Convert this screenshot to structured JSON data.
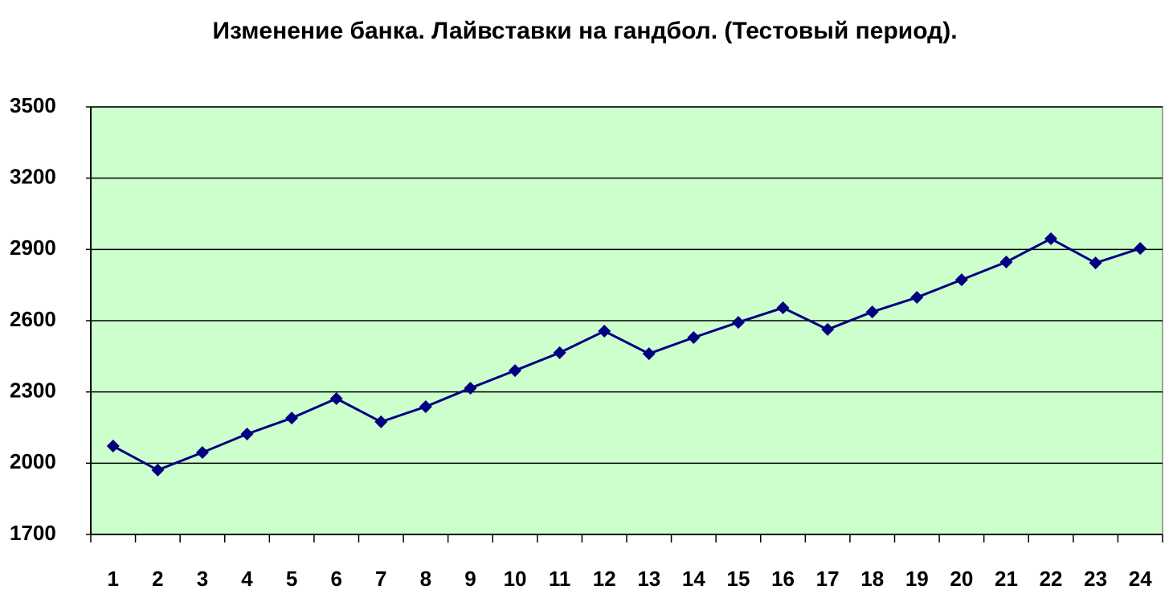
{
  "chart_data": {
    "type": "line",
    "title": "Изменение банка. Лайвставки на гандбол. (Тестовый период).",
    "categories": [
      "1",
      "2",
      "3",
      "4",
      "5",
      "6",
      "7",
      "8",
      "9",
      "10",
      "11",
      "12",
      "13",
      "14",
      "15",
      "16",
      "17",
      "18",
      "19",
      "20",
      "21",
      "22",
      "23",
      "24"
    ],
    "series": [
      {
        "color": "#000080",
        "values": [
          2072,
          1971,
          2045,
          2123,
          2190,
          2272,
          2174,
          2238,
          2316,
          2390,
          2465,
          2556,
          2461,
          2529,
          2593,
          2654,
          2563,
          2637,
          2698,
          2772,
          2847,
          2945,
          2843,
          2904
        ]
      }
    ],
    "ylim": [
      1700,
      3500
    ],
    "yticks": [
      1700,
      2000,
      2300,
      2600,
      2900,
      3200,
      3500
    ],
    "grid": true,
    "plot_background": "#ccffcc"
  }
}
